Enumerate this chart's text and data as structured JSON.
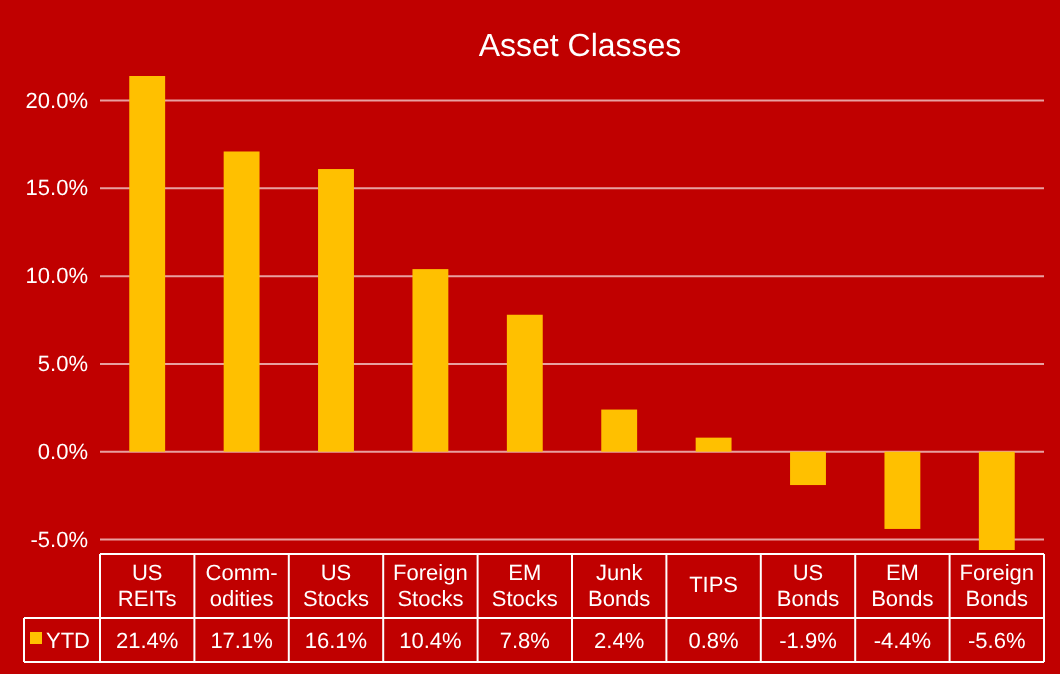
{
  "chart_data": {
    "type": "bar",
    "title": "Asset Classes",
    "categories": [
      "US REITs",
      "Comm-odities",
      "US Stocks",
      "Foreign Stocks",
      "EM Stocks",
      "Junk Bonds",
      "TIPS",
      "US Bonds",
      "EM Bonds",
      "Foreign Bonds"
    ],
    "series": [
      {
        "name": "YTD",
        "color": "#ffc000",
        "values": [
          21.4,
          17.1,
          16.1,
          10.4,
          7.8,
          2.4,
          0.8,
          -1.9,
          -4.4,
          -5.6
        ],
        "value_labels": [
          "21.4%",
          "17.1%",
          "16.1%",
          "10.4%",
          "7.8%",
          "2.4%",
          "0.8%",
          "-1.9%",
          "-4.4%",
          "-5.6%"
        ]
      }
    ],
    "ylim": [
      -5.6,
      21.4
    ],
    "yticks": [
      {
        "value": -5,
        "label": "-5.0%"
      },
      {
        "value": 0,
        "label": "0.0%"
      },
      {
        "value": 5,
        "label": "5.0%"
      },
      {
        "value": 10,
        "label": "10.0%"
      },
      {
        "value": 15,
        "label": "15.0%"
      },
      {
        "value": 20,
        "label": "20.0%"
      }
    ],
    "grid": "y",
    "legend": "bottom"
  }
}
